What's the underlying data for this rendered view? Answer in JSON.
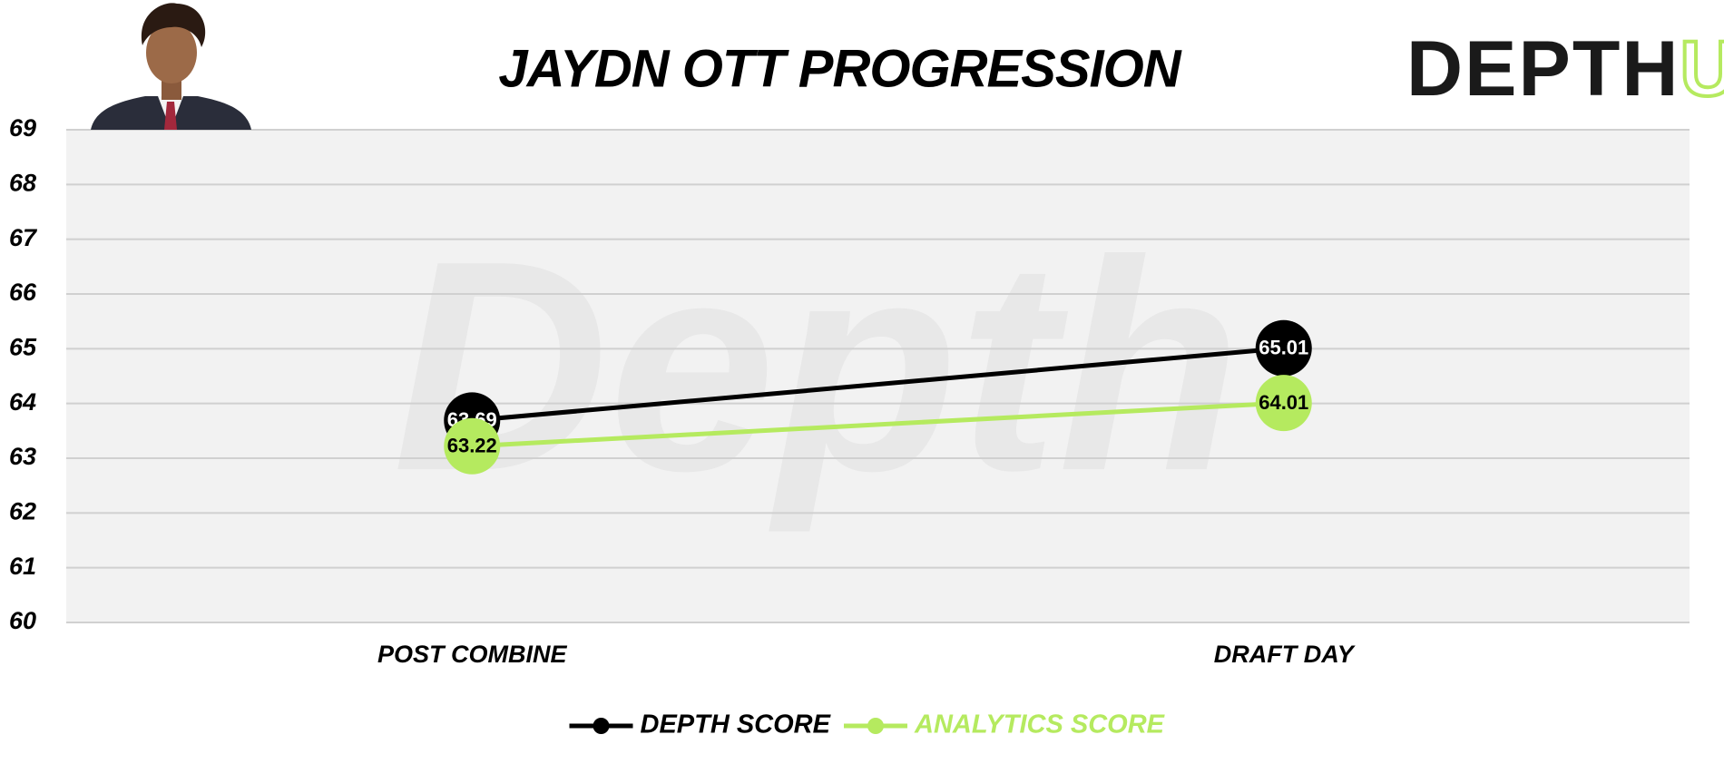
{
  "chart_data": {
    "type": "line",
    "title": "JAYDN OTT PROGRESSION",
    "logo": [
      "DEPTH",
      "U"
    ],
    "watermark": "Depth",
    "categories": [
      "POST COMBINE",
      "DRAFT DAY"
    ],
    "series": [
      {
        "name": "DEPTH SCORE",
        "color": "#000000",
        "values": [
          63.69,
          65.01
        ]
      },
      {
        "name": "ANALYTICS SCORE",
        "color": "#b5ea5f",
        "values": [
          63.22,
          64.01
        ]
      }
    ],
    "ylim": [
      60,
      69
    ],
    "yticks": [
      60,
      61,
      62,
      63,
      64,
      65,
      66,
      67,
      68,
      69
    ],
    "grid": true,
    "legend": "bottom"
  }
}
